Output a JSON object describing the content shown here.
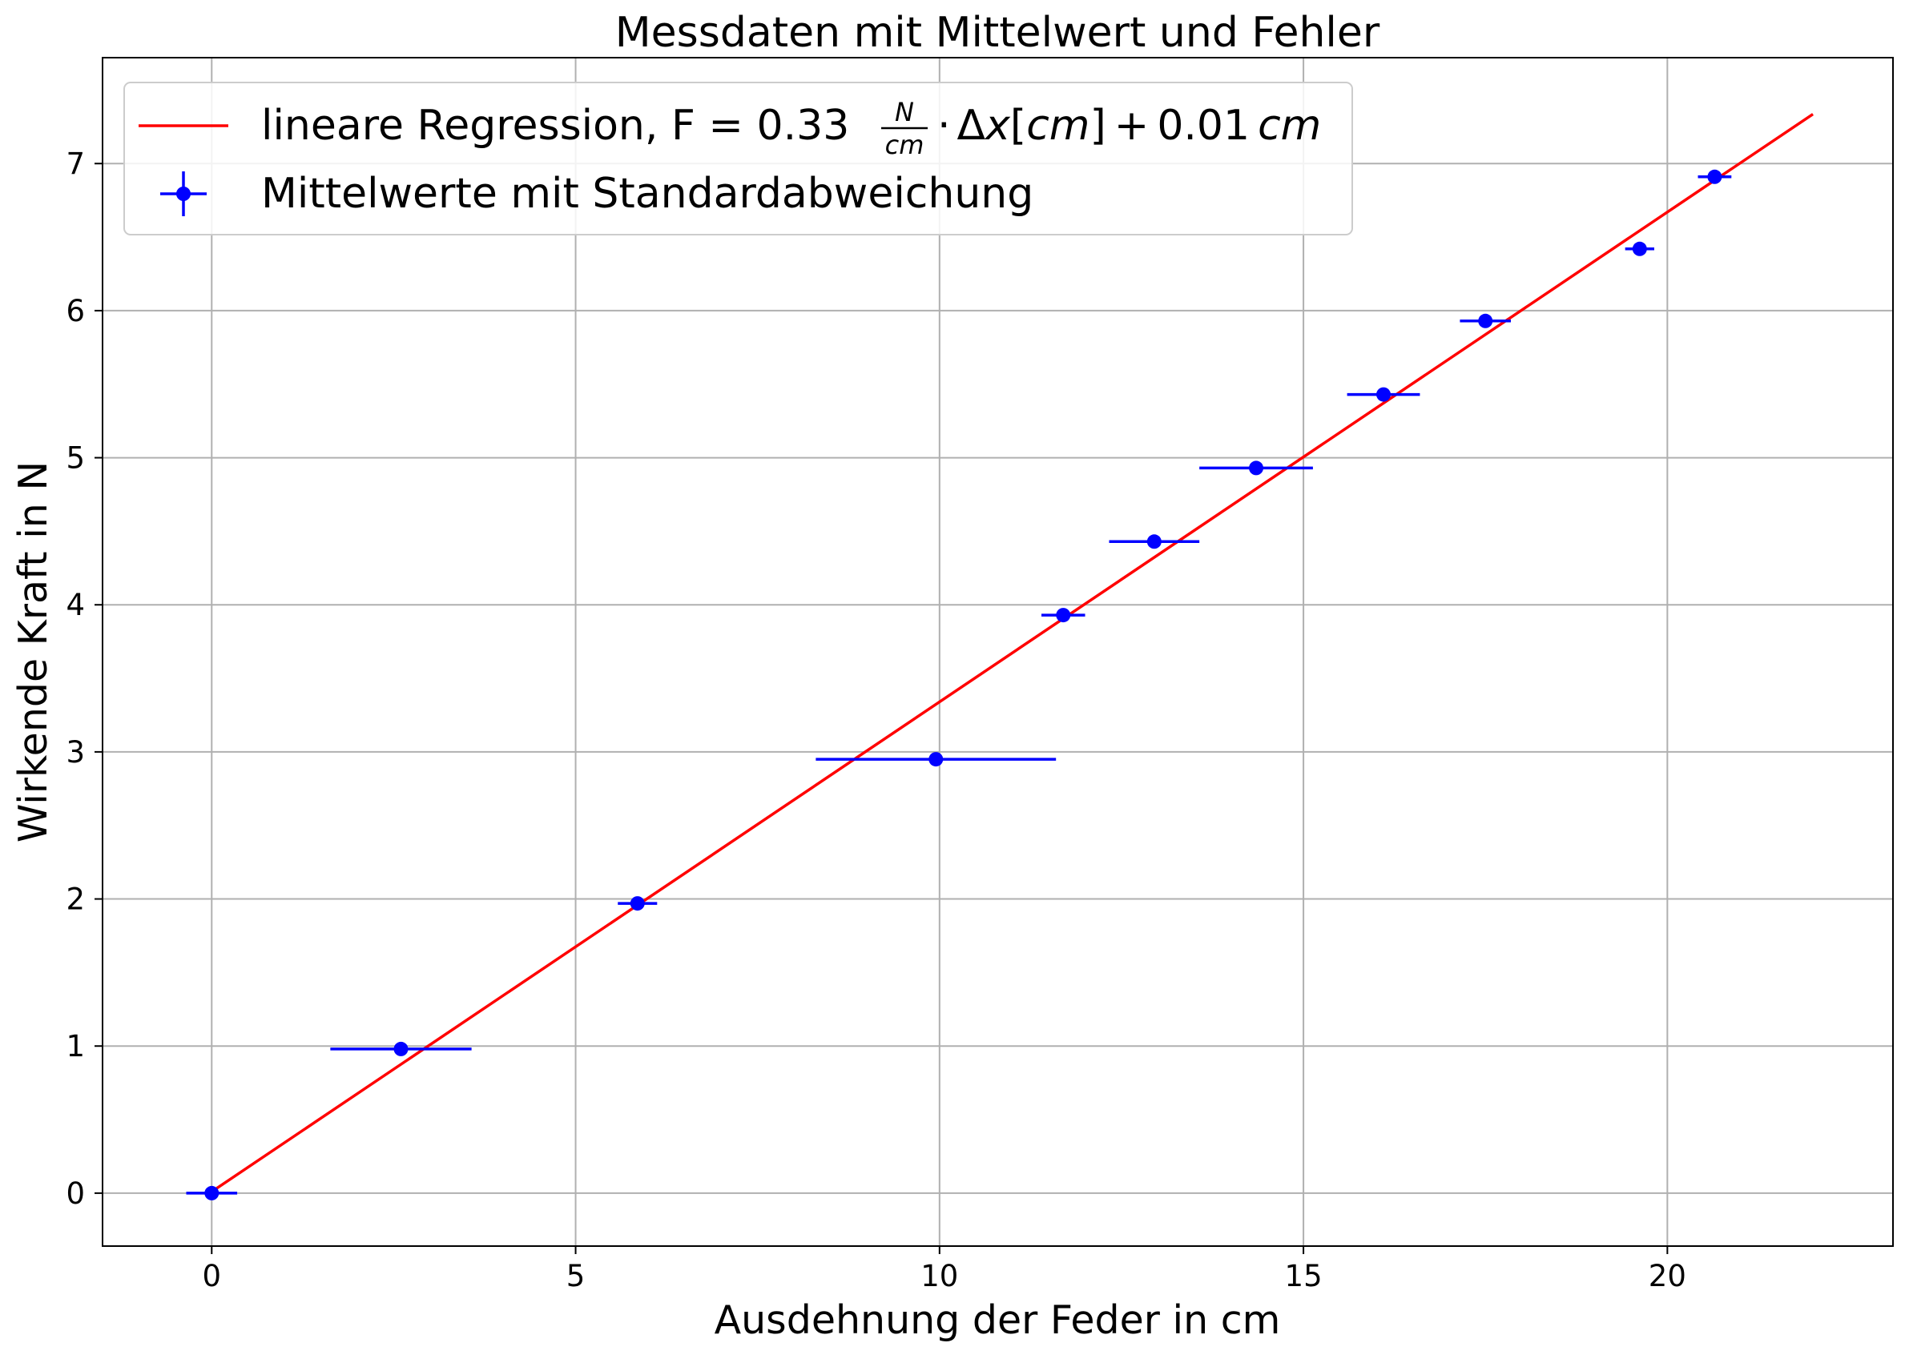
{
  "chart_data": {
    "type": "scatter",
    "title": "Messdaten mit Mittelwert und Fehler",
    "xlabel": "Ausdehnung der Feder in cm",
    "ylabel": "Wirkende Kraft in N",
    "xlim": [
      -1.5,
      23.1
    ],
    "ylim": [
      -0.36,
      7.72
    ],
    "xticks": [
      0,
      5,
      10,
      15,
      20
    ],
    "yticks": [
      0,
      1,
      2,
      3,
      4,
      5,
      6,
      7
    ],
    "grid": true,
    "legend_position": "top-left",
    "series": [
      {
        "name": "Mittelwerte mit Standardabweichung",
        "kind": "errorbar",
        "color": "#0000ff",
        "points": [
          {
            "x": 0.0,
            "y": 0.0,
            "xerr": 0.35
          },
          {
            "x": 2.6,
            "y": 0.98,
            "xerr": 0.97
          },
          {
            "x": 5.85,
            "y": 1.97,
            "xerr": 0.27
          },
          {
            "x": 9.95,
            "y": 2.95,
            "xerr": 1.65
          },
          {
            "x": 11.7,
            "y": 3.93,
            "xerr": 0.3
          },
          {
            "x": 12.95,
            "y": 4.43,
            "xerr": 0.62
          },
          {
            "x": 14.35,
            "y": 4.93,
            "xerr": 0.78
          },
          {
            "x": 16.1,
            "y": 5.43,
            "xerr": 0.5
          },
          {
            "x": 17.5,
            "y": 5.93,
            "xerr": 0.35
          },
          {
            "x": 19.62,
            "y": 6.42,
            "xerr": 0.2
          },
          {
            "x": 20.65,
            "y": 6.91,
            "xerr": 0.23
          }
        ]
      },
      {
        "name_parts": {
          "prefix": "lineare Regression, F = 0.33",
          "frac_num": "N",
          "frac_den": "cm",
          "dot": "·",
          "delta": "Δ",
          "var": "x",
          "lbr": "[",
          "unit": "cm",
          "rbr": "]",
          "plus": "+",
          "const": "0.01",
          "const_unit": "cm"
        },
        "kind": "line",
        "color": "#ff0000",
        "slope": 0.333,
        "intercept": 0.01,
        "x_range": [
          0,
          22
        ]
      }
    ]
  }
}
